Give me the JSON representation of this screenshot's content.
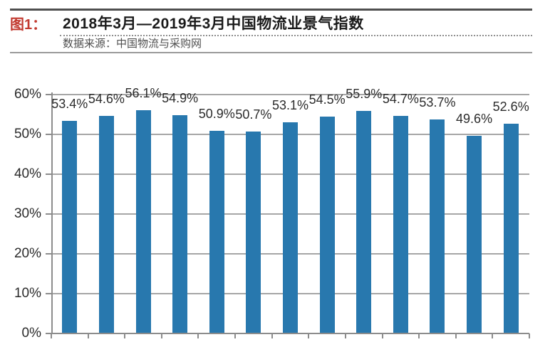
{
  "header": {
    "figure_label": "图1：",
    "title": "2018年3月—2019年3月中国物流业景气指数",
    "source": "数据来源：中国物流与采购网"
  },
  "chart_data": {
    "type": "bar",
    "title": "2018年3月—2019年3月中国物流业景气指数",
    "source": "数据来源：中国物流与采购网",
    "categories": [],
    "values": [
      53.4,
      54.6,
      56.1,
      54.9,
      50.9,
      50.7,
      53.1,
      54.5,
      55.9,
      54.7,
      53.7,
      49.6,
      52.6
    ],
    "data_labels": [
      "53.4%",
      "54.6%",
      "56.1%",
      "54.9%",
      "50.9%",
      "50.7%",
      "53.1%",
      "54.5%",
      "55.9%",
      "54.7%",
      "53.7%",
      "49.6%",
      "52.6%"
    ],
    "xlabel": "",
    "ylabel": "",
    "ylim": [
      0,
      60
    ],
    "yticks_percent": [
      60,
      50,
      40,
      30,
      20,
      10,
      0
    ],
    "ytick_labels": [
      "60%",
      "50%",
      "40%",
      "30%",
      "20%",
      "10%",
      "0%"
    ],
    "grid": true,
    "legend": false,
    "bar_color": "#2878AE"
  },
  "colors": {
    "bar": "#2878AE",
    "figure_label_red": "#C23A30",
    "gridline": "#A6A6A6",
    "axis": "#8C8C8C",
    "text": "#2B2B2B",
    "source_text": "#4F4F4F"
  }
}
